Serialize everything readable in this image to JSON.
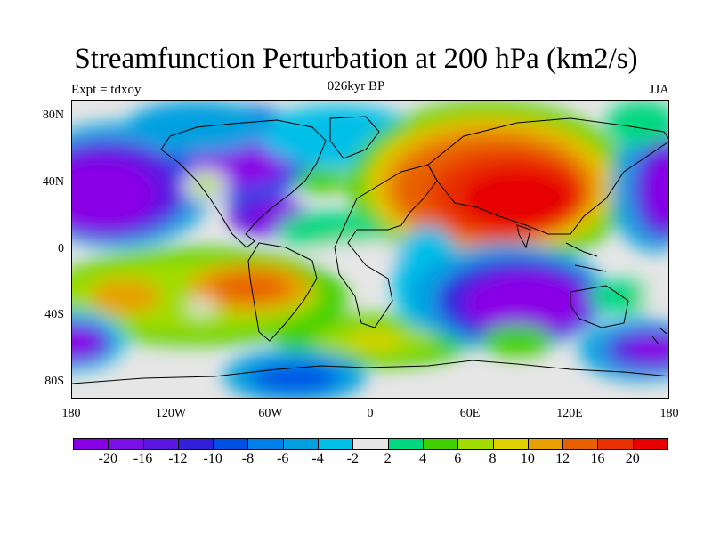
{
  "title": "Streamfunction Perturbation at 200 hPa (km2/s)",
  "subtitle_left": "Expt = tdxoy",
  "subtitle_center": "026kyr BP",
  "subtitle_right": "JJA",
  "lat_labels": [
    "80N",
    "40N",
    "0",
    "40S",
    "80S"
  ],
  "lon_labels": [
    "180",
    "120W",
    "60W",
    "0",
    "60E",
    "120E",
    "180"
  ],
  "colorbar": {
    "labels": [
      "-20",
      "-16",
      "-12",
      "-10",
      "-8",
      "-6",
      "-4",
      "-2",
      "2",
      "4",
      "6",
      "8",
      "10",
      "12",
      "16",
      "20"
    ],
    "colors": [
      "#8a00e6",
      "#7a10e8",
      "#5a18e0",
      "#3020dc",
      "#0050e6",
      "#0080ea",
      "#00a0e0",
      "#00c0e8",
      "#e6e6e6",
      "#00d880",
      "#40d000",
      "#a0dc00",
      "#e0d000",
      "#e8a000",
      "#e86000",
      "#e83000",
      "#e60000"
    ]
  },
  "colors": {
    "background": "#e6e6e6",
    "coastline": "#000000"
  }
}
